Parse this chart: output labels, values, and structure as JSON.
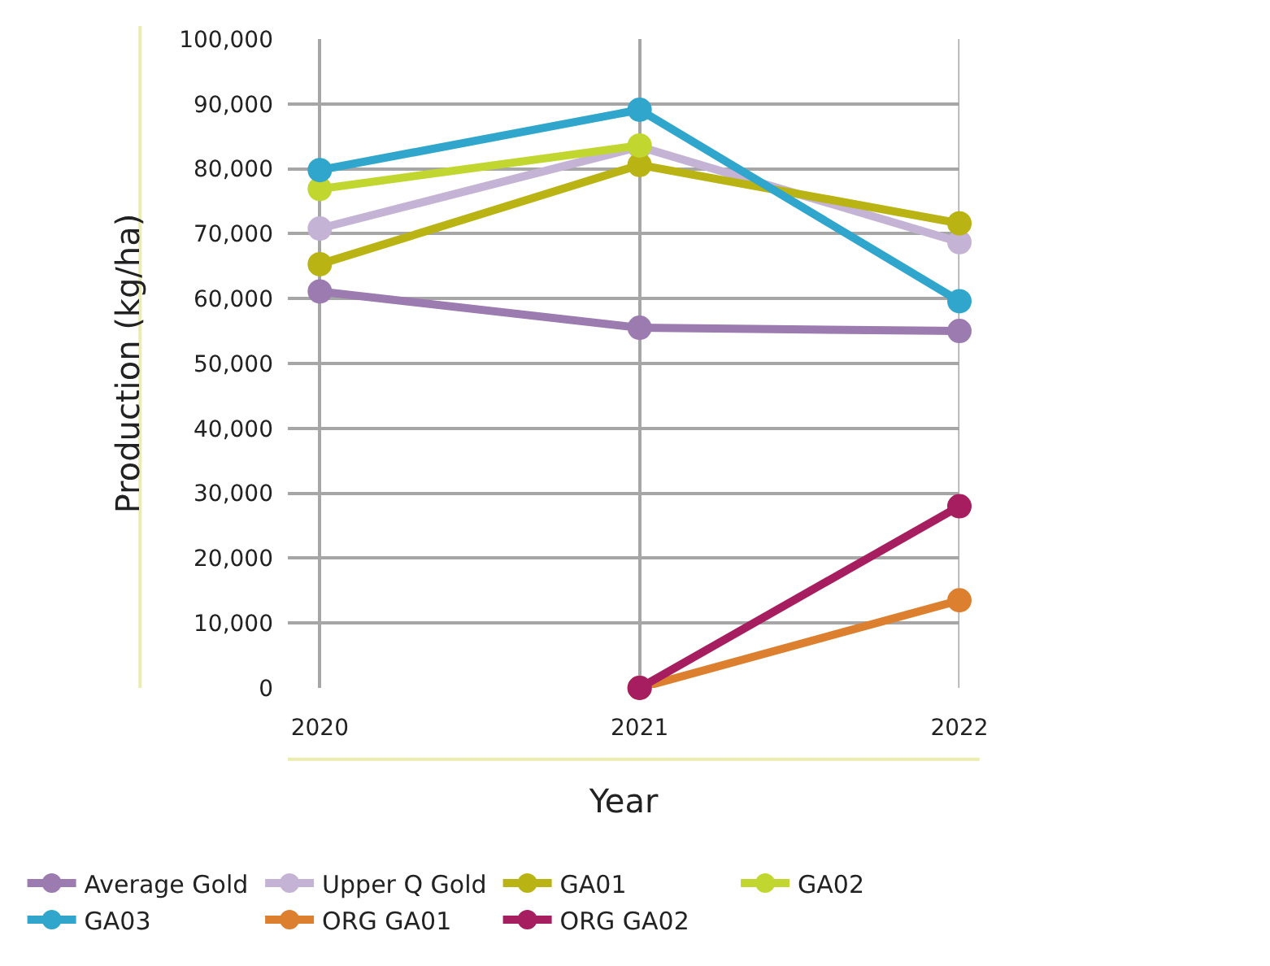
{
  "chart_data": {
    "type": "line",
    "xlabel": "Year",
    "ylabel": "Production (kg/ha)",
    "x": [
      2020,
      2021,
      2022
    ],
    "xlim": [
      2019.9,
      2022
    ],
    "xticks": [
      2020,
      2021,
      2022
    ],
    "ylim": [
      0,
      100000
    ],
    "yticks": [
      {
        "value": 0,
        "label": "0"
      },
      {
        "value": 10000,
        "label": "10,000"
      },
      {
        "value": 20000,
        "label": "20,000"
      },
      {
        "value": 30000,
        "label": "30,000"
      },
      {
        "value": 40000,
        "label": "40,000"
      },
      {
        "value": 50000,
        "label": "50,000"
      },
      {
        "value": 60000,
        "label": "60,000"
      },
      {
        "value": 70000,
        "label": "70,000"
      },
      {
        "value": 80000,
        "label": "80,000"
      },
      {
        "value": 90000,
        "label": "90,000"
      },
      {
        "value": 100000,
        "label": "100,000"
      }
    ],
    "grid": true,
    "legend": "bottom",
    "marker": "circle",
    "line_style": "solid",
    "series": [
      {
        "name": "Average Gold",
        "color": "#9b7bb0",
        "values": [
          61100,
          55500,
          55000
        ]
      },
      {
        "name": "Upper Q Gold",
        "color": "#c5b3d5",
        "values": [
          70800,
          83400,
          68700
        ]
      },
      {
        "name": "GA01",
        "color": "#b9b413",
        "values": [
          65300,
          80600,
          71600
        ]
      },
      {
        "name": "GA02",
        "color": "#c1d72f",
        "values": [
          76900,
          83600,
          null
        ]
      },
      {
        "name": "GA03",
        "color": "#31a6cc",
        "values": [
          79800,
          89100,
          59600
        ]
      },
      {
        "name": "ORG GA01",
        "color": "#dc7f2f",
        "values": [
          null,
          0,
          13500
        ]
      },
      {
        "name": "ORG GA02",
        "color": "#a61e5f",
        "values": [
          null,
          0,
          28000
        ]
      }
    ]
  }
}
